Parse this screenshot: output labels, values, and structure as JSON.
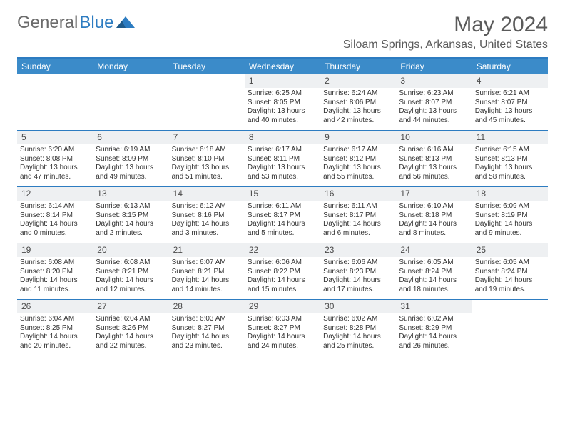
{
  "logo": {
    "text_gray": "General",
    "text_blue": "Blue"
  },
  "title": "May 2024",
  "location": "Siloam Springs, Arkansas, United States",
  "day_headers": [
    "Sunday",
    "Monday",
    "Tuesday",
    "Wednesday",
    "Thursday",
    "Friday",
    "Saturday"
  ],
  "colors": {
    "header_bg": "#3b8bc9",
    "border": "#2d7cc1",
    "day_num_bg": "#eef0f2",
    "text": "#333333",
    "title_text": "#5a5a5a",
    "logo_gray": "#6b6b6b"
  },
  "weeks": [
    [
      {
        "n": "",
        "empty": true
      },
      {
        "n": "",
        "empty": true
      },
      {
        "n": "",
        "empty": true
      },
      {
        "n": "1",
        "sr": "6:25 AM",
        "ss": "8:05 PM",
        "dl": "13 hours and 40 minutes."
      },
      {
        "n": "2",
        "sr": "6:24 AM",
        "ss": "8:06 PM",
        "dl": "13 hours and 42 minutes."
      },
      {
        "n": "3",
        "sr": "6:23 AM",
        "ss": "8:07 PM",
        "dl": "13 hours and 44 minutes."
      },
      {
        "n": "4",
        "sr": "6:21 AM",
        "ss": "8:07 PM",
        "dl": "13 hours and 45 minutes."
      }
    ],
    [
      {
        "n": "5",
        "sr": "6:20 AM",
        "ss": "8:08 PM",
        "dl": "13 hours and 47 minutes."
      },
      {
        "n": "6",
        "sr": "6:19 AM",
        "ss": "8:09 PM",
        "dl": "13 hours and 49 minutes."
      },
      {
        "n": "7",
        "sr": "6:18 AM",
        "ss": "8:10 PM",
        "dl": "13 hours and 51 minutes."
      },
      {
        "n": "8",
        "sr": "6:17 AM",
        "ss": "8:11 PM",
        "dl": "13 hours and 53 minutes."
      },
      {
        "n": "9",
        "sr": "6:17 AM",
        "ss": "8:12 PM",
        "dl": "13 hours and 55 minutes."
      },
      {
        "n": "10",
        "sr": "6:16 AM",
        "ss": "8:13 PM",
        "dl": "13 hours and 56 minutes."
      },
      {
        "n": "11",
        "sr": "6:15 AM",
        "ss": "8:13 PM",
        "dl": "13 hours and 58 minutes."
      }
    ],
    [
      {
        "n": "12",
        "sr": "6:14 AM",
        "ss": "8:14 PM",
        "dl": "14 hours and 0 minutes."
      },
      {
        "n": "13",
        "sr": "6:13 AM",
        "ss": "8:15 PM",
        "dl": "14 hours and 2 minutes."
      },
      {
        "n": "14",
        "sr": "6:12 AM",
        "ss": "8:16 PM",
        "dl": "14 hours and 3 minutes."
      },
      {
        "n": "15",
        "sr": "6:11 AM",
        "ss": "8:17 PM",
        "dl": "14 hours and 5 minutes."
      },
      {
        "n": "16",
        "sr": "6:11 AM",
        "ss": "8:17 PM",
        "dl": "14 hours and 6 minutes."
      },
      {
        "n": "17",
        "sr": "6:10 AM",
        "ss": "8:18 PM",
        "dl": "14 hours and 8 minutes."
      },
      {
        "n": "18",
        "sr": "6:09 AM",
        "ss": "8:19 PM",
        "dl": "14 hours and 9 minutes."
      }
    ],
    [
      {
        "n": "19",
        "sr": "6:08 AM",
        "ss": "8:20 PM",
        "dl": "14 hours and 11 minutes."
      },
      {
        "n": "20",
        "sr": "6:08 AM",
        "ss": "8:21 PM",
        "dl": "14 hours and 12 minutes."
      },
      {
        "n": "21",
        "sr": "6:07 AM",
        "ss": "8:21 PM",
        "dl": "14 hours and 14 minutes."
      },
      {
        "n": "22",
        "sr": "6:06 AM",
        "ss": "8:22 PM",
        "dl": "14 hours and 15 minutes."
      },
      {
        "n": "23",
        "sr": "6:06 AM",
        "ss": "8:23 PM",
        "dl": "14 hours and 17 minutes."
      },
      {
        "n": "24",
        "sr": "6:05 AM",
        "ss": "8:24 PM",
        "dl": "14 hours and 18 minutes."
      },
      {
        "n": "25",
        "sr": "6:05 AM",
        "ss": "8:24 PM",
        "dl": "14 hours and 19 minutes."
      }
    ],
    [
      {
        "n": "26",
        "sr": "6:04 AM",
        "ss": "8:25 PM",
        "dl": "14 hours and 20 minutes."
      },
      {
        "n": "27",
        "sr": "6:04 AM",
        "ss": "8:26 PM",
        "dl": "14 hours and 22 minutes."
      },
      {
        "n": "28",
        "sr": "6:03 AM",
        "ss": "8:27 PM",
        "dl": "14 hours and 23 minutes."
      },
      {
        "n": "29",
        "sr": "6:03 AM",
        "ss": "8:27 PM",
        "dl": "14 hours and 24 minutes."
      },
      {
        "n": "30",
        "sr": "6:02 AM",
        "ss": "8:28 PM",
        "dl": "14 hours and 25 minutes."
      },
      {
        "n": "31",
        "sr": "6:02 AM",
        "ss": "8:29 PM",
        "dl": "14 hours and 26 minutes."
      },
      {
        "n": "",
        "empty": true
      }
    ]
  ]
}
